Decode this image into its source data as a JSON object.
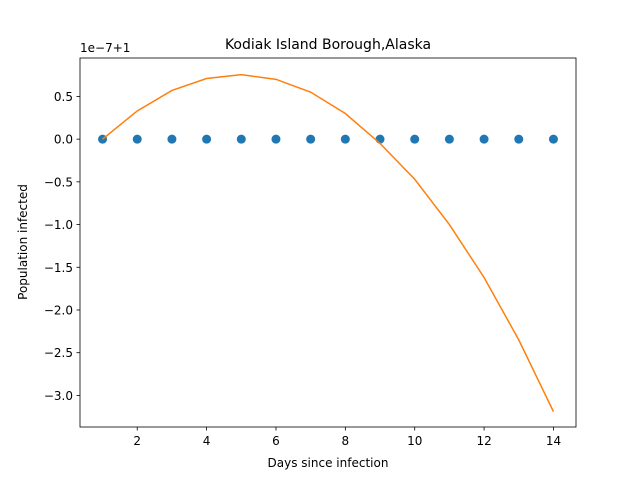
{
  "chart_data": {
    "type": "scatter",
    "title": "Kodiak Island Borough,Alaska",
    "xlabel": "Days since infection",
    "ylabel": "Population infected",
    "y_offset_text": "1e−7+1",
    "xlim": [
      0.35,
      14.65
    ],
    "ylim": [
      -3.37,
      0.95
    ],
    "x_ticks": [
      2,
      4,
      6,
      8,
      10,
      12,
      14
    ],
    "x_tick_labels": [
      "2",
      "4",
      "6",
      "8",
      "10",
      "12",
      "14"
    ],
    "y_ticks": [
      0.5,
      0.0,
      -0.5,
      -1.0,
      -1.5,
      -2.0,
      -2.5,
      -3.0
    ],
    "y_tick_labels": [
      "0.5",
      "0.0",
      "−0.5",
      "−1.0",
      "−1.5",
      "−2.0",
      "−2.5",
      "−3.0"
    ],
    "grid": false,
    "series": [
      {
        "kind": "scatter",
        "color": "#1f77b4",
        "x": [
          1,
          2,
          3,
          4,
          5,
          6,
          7,
          8,
          9,
          10,
          11,
          12,
          13,
          14
        ],
        "y": [
          0,
          0,
          0,
          0,
          0,
          0,
          0,
          0,
          0,
          0,
          0,
          0,
          0,
          0
        ]
      },
      {
        "kind": "line",
        "color": "#ff7f0e",
        "x": [
          1,
          2,
          3,
          4,
          5,
          6,
          7,
          8,
          9,
          10,
          11,
          12,
          13,
          14
        ],
        "y": [
          0.0,
          0.33,
          0.57,
          0.71,
          0.755,
          0.7,
          0.55,
          0.3,
          -0.05,
          -0.47,
          -1.0,
          -1.62,
          -2.35,
          -3.19
        ]
      }
    ]
  }
}
